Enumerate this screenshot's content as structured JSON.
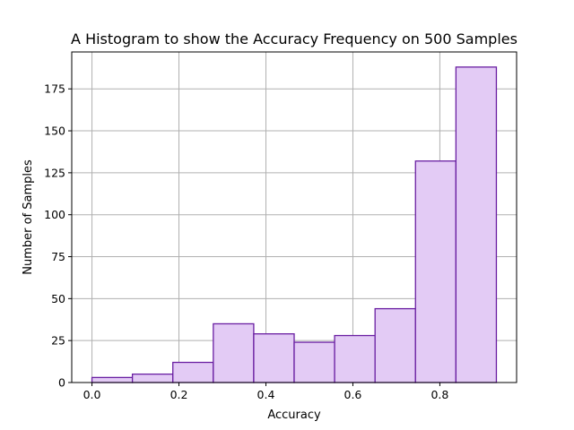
{
  "chart_data": {
    "type": "bar",
    "title": "A Histogram to show the Accuracy Frequency on 500 Samples",
    "xlabel": "Accuracy",
    "ylabel": "Number of Samples",
    "xlim": [
      -0.0465,
      0.9765
    ],
    "ylim": [
      0,
      197
    ],
    "grid": true,
    "bin_edges": [
      0.0,
      0.093,
      0.186,
      0.279,
      0.372,
      0.465,
      0.558,
      0.651,
      0.744,
      0.837,
      0.93
    ],
    "values": [
      3,
      5,
      12,
      35,
      29,
      24,
      28,
      44,
      132,
      188
    ],
    "xticks": [
      0.0,
      0.2,
      0.4,
      0.6,
      0.8
    ],
    "xtick_labels": [
      "0.0",
      "0.2",
      "0.4",
      "0.6",
      "0.8"
    ],
    "yticks": [
      0,
      25,
      50,
      75,
      100,
      125,
      150,
      175
    ],
    "ytick_labels": [
      "0",
      "25",
      "50",
      "75",
      "100",
      "125",
      "150",
      "175"
    ],
    "colors": {
      "fill": "#e3cbf5",
      "edge": "#6a1fa2"
    }
  }
}
